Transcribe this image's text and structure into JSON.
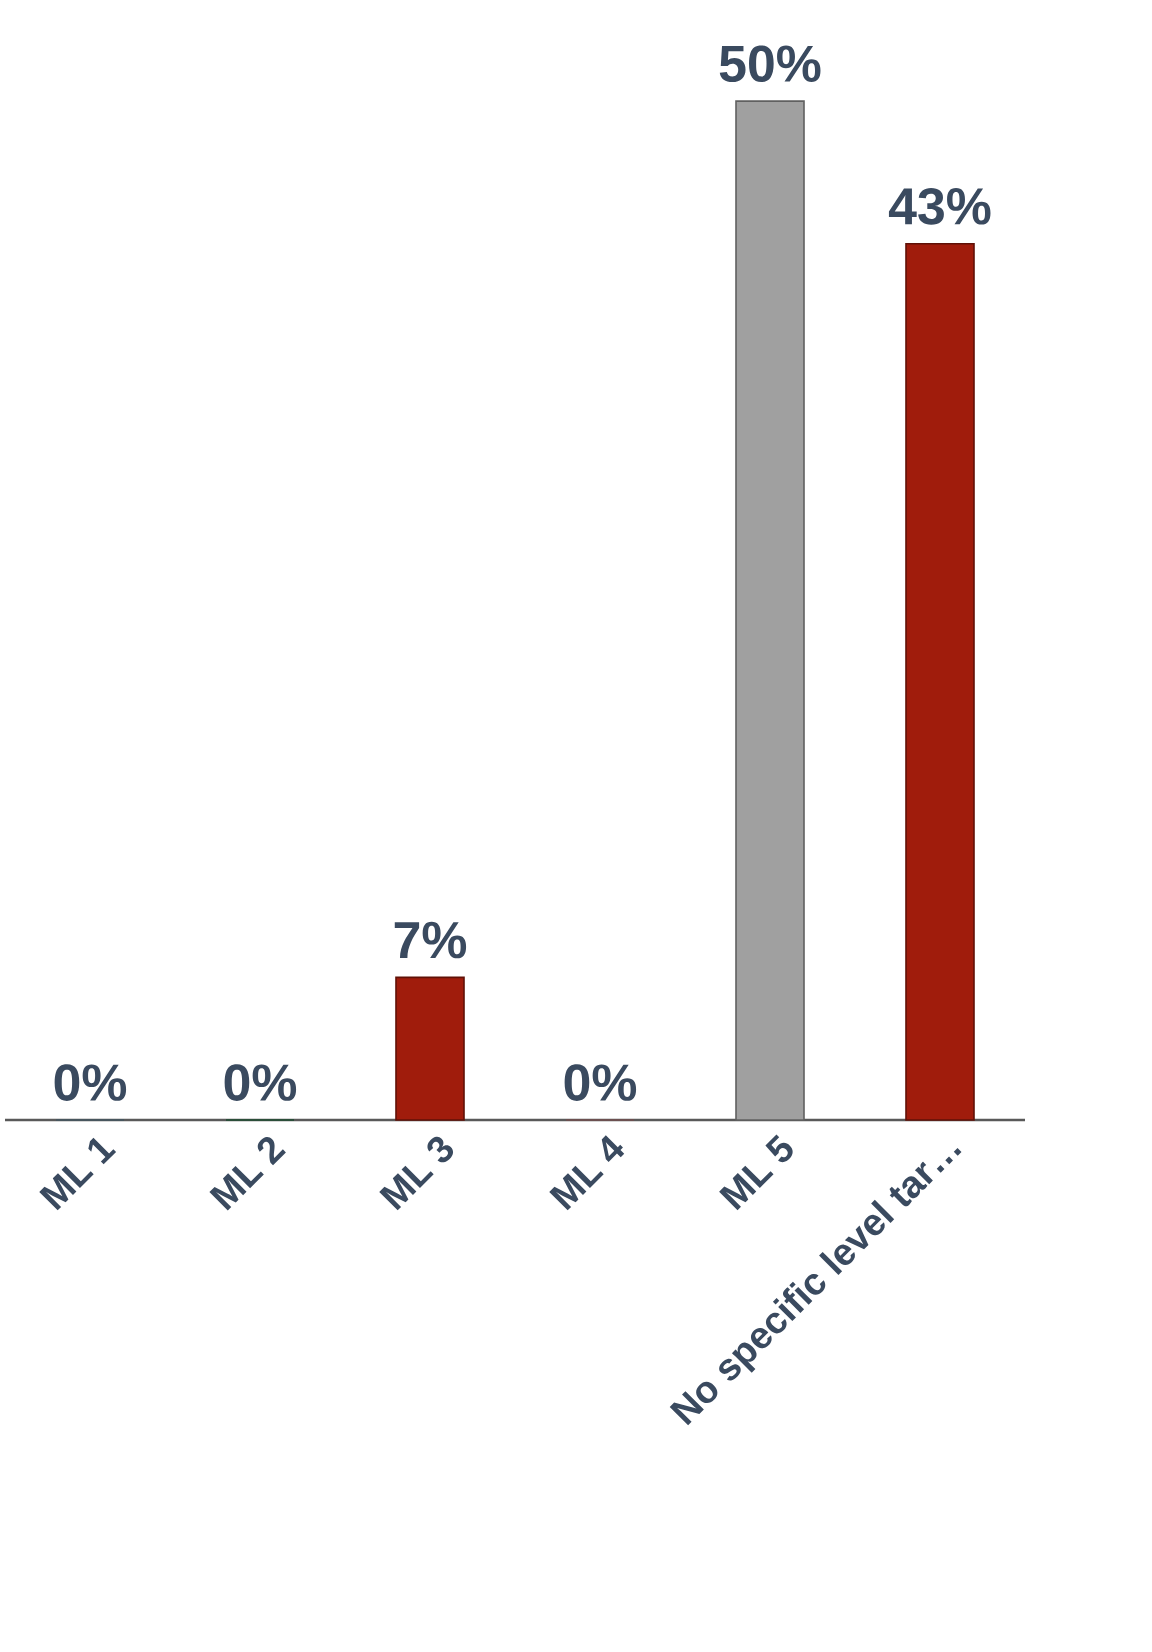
{
  "chart_data": {
    "type": "bar",
    "categories": [
      "ML 1",
      "ML 2",
      "ML 3",
      "ML 4",
      "ML 5",
      "No specific level tar…"
    ],
    "values": [
      0,
      0,
      7,
      0,
      50,
      43
    ],
    "colors": [
      "#6f8fa0",
      "#2e7d4f",
      "#a01c0c",
      "#c08080",
      "#a0a0a0",
      "#a01c0c"
    ],
    "value_labels": [
      "0%",
      "0%",
      "7%",
      "0%",
      "50%",
      "43%"
    ]
  }
}
